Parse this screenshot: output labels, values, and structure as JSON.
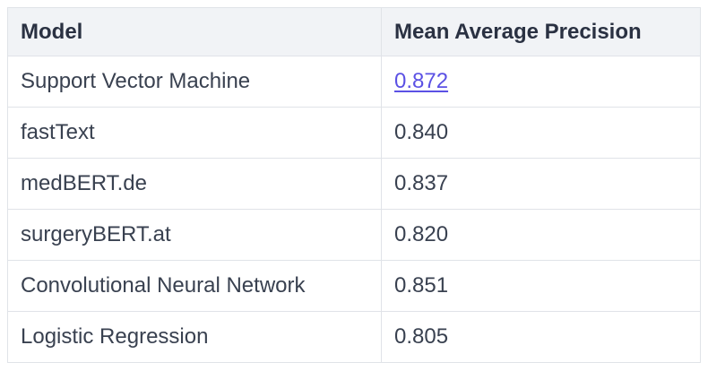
{
  "colors": {
    "page_bg": "#ffffff",
    "header_bg": "#f1f3f6",
    "border": "#e0e3e8",
    "header_text": "#2a3142",
    "body_text": "#394150",
    "link": "#5b51e4"
  },
  "table": {
    "columns": {
      "model": "Model",
      "map": "Mean Average Precision"
    },
    "rows": [
      {
        "model": "Support Vector Machine",
        "map": "0.872",
        "map_is_link": true
      },
      {
        "model": "fastText",
        "map": "0.840",
        "map_is_link": false
      },
      {
        "model": "medBERT.de",
        "map": "0.837",
        "map_is_link": false
      },
      {
        "model": "surgeryBERT.at",
        "map": "0.820",
        "map_is_link": false
      },
      {
        "model": "Convolutional Neural Network",
        "map": "0.851",
        "map_is_link": false
      },
      {
        "model": "Logistic Regression",
        "map": "0.805",
        "map_is_link": false
      }
    ]
  },
  "chart_data": {
    "type": "table",
    "columns": [
      "Model",
      "Mean Average Precision"
    ],
    "rows": [
      [
        "Support Vector Machine",
        0.872
      ],
      [
        "fastText",
        0.84
      ],
      [
        "medBERT.de",
        0.837
      ],
      [
        "surgeryBERT.at",
        0.82
      ],
      [
        "Convolutional Neural Network",
        0.851
      ],
      [
        "Logistic Regression",
        0.805
      ]
    ],
    "notes": "Value 0.872 is rendered as a hyperlink"
  }
}
